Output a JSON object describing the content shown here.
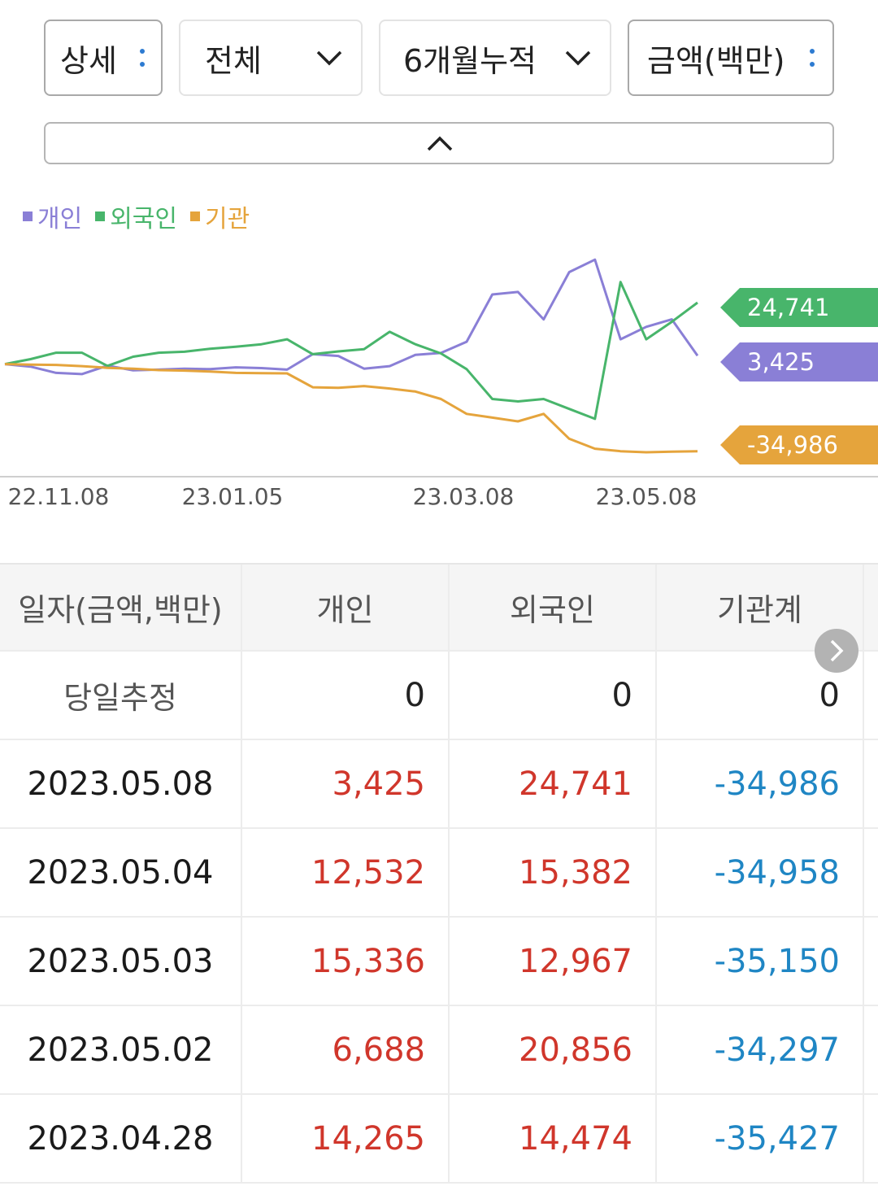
{
  "filters": {
    "detail": "상세",
    "market": "전체",
    "period": "6개월누적",
    "unit": "금액(백만)"
  },
  "colors": {
    "individual": "#8a7fd6",
    "foreign": "#48b56b",
    "institution": "#e5a43c",
    "positive": "#d0362b",
    "negative": "#1f86c4"
  },
  "icons": {
    "filter_menu": "kebab-icon",
    "dropdown": "chevron-down-icon",
    "collapse": "chevron-up-icon",
    "next": "chevron-right-icon"
  },
  "chart_data": {
    "type": "line",
    "x_ticks": [
      "22.11.08",
      "23.01.05",
      "23.03.08",
      "23.05.08"
    ],
    "series": [
      {
        "name": "개인",
        "color": "#8a7fd6",
        "last_label": "3,425",
        "values": [
          0,
          -1000,
          -3500,
          -4000,
          -600,
          -2500,
          -2200,
          -1800,
          -2000,
          -1300,
          -1600,
          -2200,
          4000,
          3300,
          -1800,
          -800,
          3700,
          4500,
          9000,
          28000,
          29000,
          18000,
          37000,
          42000,
          10000,
          15000,
          18000,
          3425
        ]
      },
      {
        "name": "외국인",
        "color": "#48b56b",
        "last_label": "24,741",
        "values": [
          0,
          2000,
          4600,
          4600,
          -700,
          3000,
          4600,
          5000,
          6200,
          7000,
          8000,
          10000,
          4000,
          5100,
          6000,
          13000,
          8000,
          4300,
          -2000,
          -14000,
          -15000,
          -14000,
          -18000,
          -22000,
          33000,
          10000,
          17000,
          24741
        ]
      },
      {
        "name": "기관",
        "color": "#e5a43c",
        "last_label": "-34,986",
        "values": [
          0,
          -200,
          -300,
          -800,
          -1500,
          -1800,
          -2400,
          -2600,
          -3000,
          -3500,
          -3600,
          -3700,
          -9300,
          -9500,
          -8800,
          -9800,
          -11000,
          -14000,
          -20000,
          -21500,
          -23000,
          -20000,
          -30000,
          -34000,
          -35000,
          -35427,
          -35150,
          -34986
        ]
      }
    ],
    "ylim": [
      -40000,
      45000
    ],
    "grid": false,
    "legend": "top-left"
  },
  "table": {
    "headers": [
      "일자(금액,백만)",
      "개인",
      "외국인",
      "기관계"
    ],
    "today_row": {
      "label": "당일추정",
      "individual": "0",
      "foreign": "0",
      "institution": "0"
    },
    "rows": [
      {
        "date": "2023.05.08",
        "individual": "3,425",
        "foreign": "24,741",
        "institution": "-34,986"
      },
      {
        "date": "2023.05.04",
        "individual": "12,532",
        "foreign": "15,382",
        "institution": "-34,958"
      },
      {
        "date": "2023.05.03",
        "individual": "15,336",
        "foreign": "12,967",
        "institution": "-35,150"
      },
      {
        "date": "2023.05.02",
        "individual": "6,688",
        "foreign": "20,856",
        "institution": "-34,297"
      },
      {
        "date": "2023.04.28",
        "individual": "14,265",
        "foreign": "14,474",
        "institution": "-35,427"
      }
    ]
  }
}
